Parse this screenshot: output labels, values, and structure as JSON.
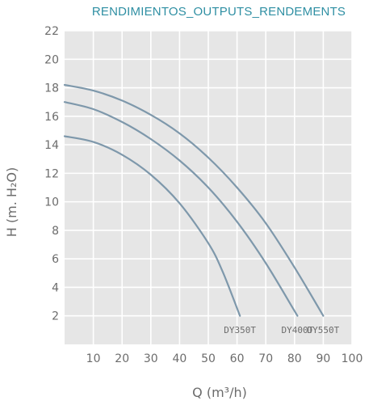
{
  "chart_data": {
    "type": "line",
    "title": "RENDIMIENTOS_OUTPUTS_RENDEMENTS",
    "xlabel": "Q (m³/h)",
    "ylabel": "H (m. H₂O)",
    "xlim": [
      0,
      100
    ],
    "ylim": [
      0,
      22
    ],
    "x_ticks": [
      "10",
      "20",
      "30",
      "40",
      "50",
      "60",
      "70",
      "80",
      "90",
      "100"
    ],
    "y_ticks": [
      "2",
      "4",
      "6",
      "8",
      "10",
      "12",
      "14",
      "16",
      "18",
      "20",
      "22"
    ],
    "grid": true,
    "legend": "none",
    "colors": {
      "line": "#7e98ab",
      "plot_bg": "#e6e6e6",
      "grid": "#ffffff",
      "title": "#2f8fa3",
      "text": "#6c6c6c"
    },
    "series": [
      {
        "name": "DY350T",
        "points": [
          [
            0,
            14.6
          ],
          [
            10,
            14.2
          ],
          [
            20,
            13.3
          ],
          [
            30,
            11.9
          ],
          [
            40,
            9.9
          ],
          [
            50,
            7.1
          ],
          [
            55,
            5.1
          ],
          [
            61,
            2.0
          ]
        ]
      },
      {
        "name": "DY400T",
        "points": [
          [
            0,
            17.0
          ],
          [
            10,
            16.5
          ],
          [
            20,
            15.6
          ],
          [
            30,
            14.4
          ],
          [
            40,
            12.9
          ],
          [
            50,
            11.0
          ],
          [
            60,
            8.6
          ],
          [
            70,
            5.7
          ],
          [
            81,
            2.0
          ]
        ]
      },
      {
        "name": "DY550T",
        "points": [
          [
            0,
            18.2
          ],
          [
            10,
            17.8
          ],
          [
            20,
            17.1
          ],
          [
            30,
            16.1
          ],
          [
            40,
            14.8
          ],
          [
            50,
            13.1
          ],
          [
            60,
            11.0
          ],
          [
            70,
            8.5
          ],
          [
            80,
            5.4
          ],
          [
            90,
            2.0
          ]
        ]
      }
    ]
  }
}
